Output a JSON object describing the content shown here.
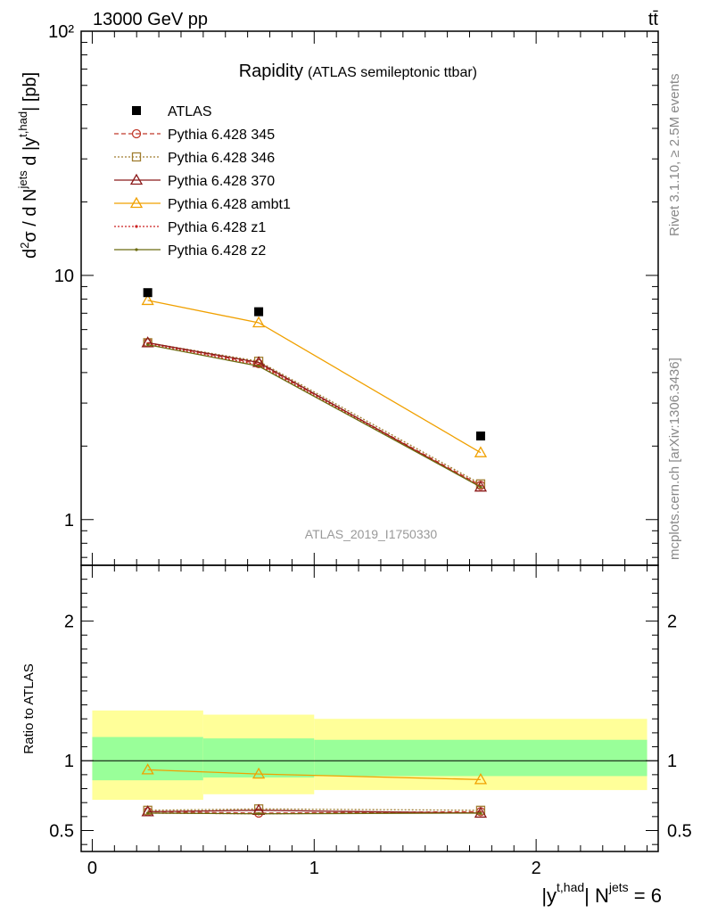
{
  "header": {
    "left": "13000 GeV pp",
    "right": "tt̄"
  },
  "side_labels": {
    "rivet": "Rivet 3.1.10, ≥ 2.5M events",
    "mcplots": "mcplots.cern.ch [arXiv:1306.3436]"
  },
  "chart_data": [
    {
      "type": "scatter",
      "title": "Rapidity",
      "subtitle": "(ATLAS semileptonic ttbar)",
      "analysis_id": "ATLAS_2019_I1750330",
      "ylabel": "d²σ / d N^jets d |y^t,had| [pb]",
      "yscale": "log",
      "ylim": [
        0.65,
        100
      ],
      "xlim": [
        -0.05,
        2.55
      ],
      "y_tick_labels": [
        "1",
        "10",
        "10²"
      ],
      "x": [
        0.25,
        0.75,
        1.75
      ],
      "x_edges": [
        0,
        0.5,
        1,
        2.5
      ],
      "series": [
        {
          "name": "ATLAS",
          "values": [
            8.5,
            7.1,
            2.2
          ],
          "color": "#000000",
          "marker": "square"
        },
        {
          "name": "Pythia 6.428 345",
          "values": [
            5.3,
            4.35,
            1.38
          ],
          "color": "#c0392b",
          "marker": "circle",
          "dash": "5,3"
        },
        {
          "name": "Pythia 6.428 346",
          "values": [
            5.3,
            4.45,
            1.4
          ],
          "color": "#a07d30",
          "marker": "square-open",
          "dash": "2,2"
        },
        {
          "name": "Pythia 6.428 370",
          "values": [
            5.3,
            4.4,
            1.36
          ],
          "color": "#8b1a1a",
          "marker": "triangle"
        },
        {
          "name": "Pythia 6.428 ambt1",
          "values": [
            7.9,
            6.4,
            1.88
          ],
          "color": "#f0a000",
          "marker": "triangle"
        },
        {
          "name": "Pythia 6.428 z1",
          "values": [
            5.25,
            4.3,
            1.37
          ],
          "color": "#cc2020",
          "marker": "dot",
          "dash": "2,2"
        },
        {
          "name": "Pythia 6.428 z2",
          "values": [
            5.2,
            4.25,
            1.36
          ],
          "color": "#6b6b10",
          "marker": "dot"
        }
      ],
      "legend_position": "top-left"
    },
    {
      "type": "line",
      "ylabel": "Ratio to ATLAS",
      "xlabel": "|y^t,had| N^jets = 6",
      "ylim": [
        0.35,
        2.4
      ],
      "y_tick_labels": [
        "0.5",
        "1",
        "2"
      ],
      "x_tick_labels": [
        "0",
        "1",
        "2"
      ],
      "x": [
        0.25,
        0.75,
        1.75
      ],
      "bands": {
        "edges": [
          0,
          0.5,
          1,
          2.5
        ],
        "yellow": {
          "low": [
            0.72,
            0.76,
            0.79
          ],
          "high": [
            1.36,
            1.33,
            1.3
          ],
          "color": "#ffff99"
        },
        "green": {
          "low": [
            0.86,
            0.88,
            0.89
          ],
          "high": [
            1.17,
            1.16,
            1.15
          ],
          "color": "#99ff99"
        }
      },
      "series": [
        {
          "name": "Pythia 6.428 345",
          "values": [
            0.635,
            0.625,
            0.635
          ],
          "color": "#c0392b",
          "marker": "circle",
          "dash": "5,3"
        },
        {
          "name": "Pythia 6.428 346",
          "values": [
            0.645,
            0.655,
            0.645
          ],
          "color": "#a07d30",
          "marker": "square-open",
          "dash": "2,2"
        },
        {
          "name": "Pythia 6.428 370",
          "values": [
            0.635,
            0.645,
            0.625
          ],
          "color": "#8b1a1a",
          "marker": "triangle"
        },
        {
          "name": "Pythia 6.428 ambt1",
          "values": [
            0.935,
            0.905,
            0.865
          ],
          "color": "#f0a000",
          "marker": "triangle"
        },
        {
          "name": "Pythia 6.428 z1",
          "values": [
            0.625,
            0.62,
            0.63
          ],
          "color": "#cc2020",
          "marker": "dot",
          "dash": "2,2"
        },
        {
          "name": "Pythia 6.428 z2",
          "values": [
            0.625,
            0.62,
            0.625
          ],
          "color": "#6b6b10",
          "marker": "dot"
        }
      ]
    }
  ]
}
